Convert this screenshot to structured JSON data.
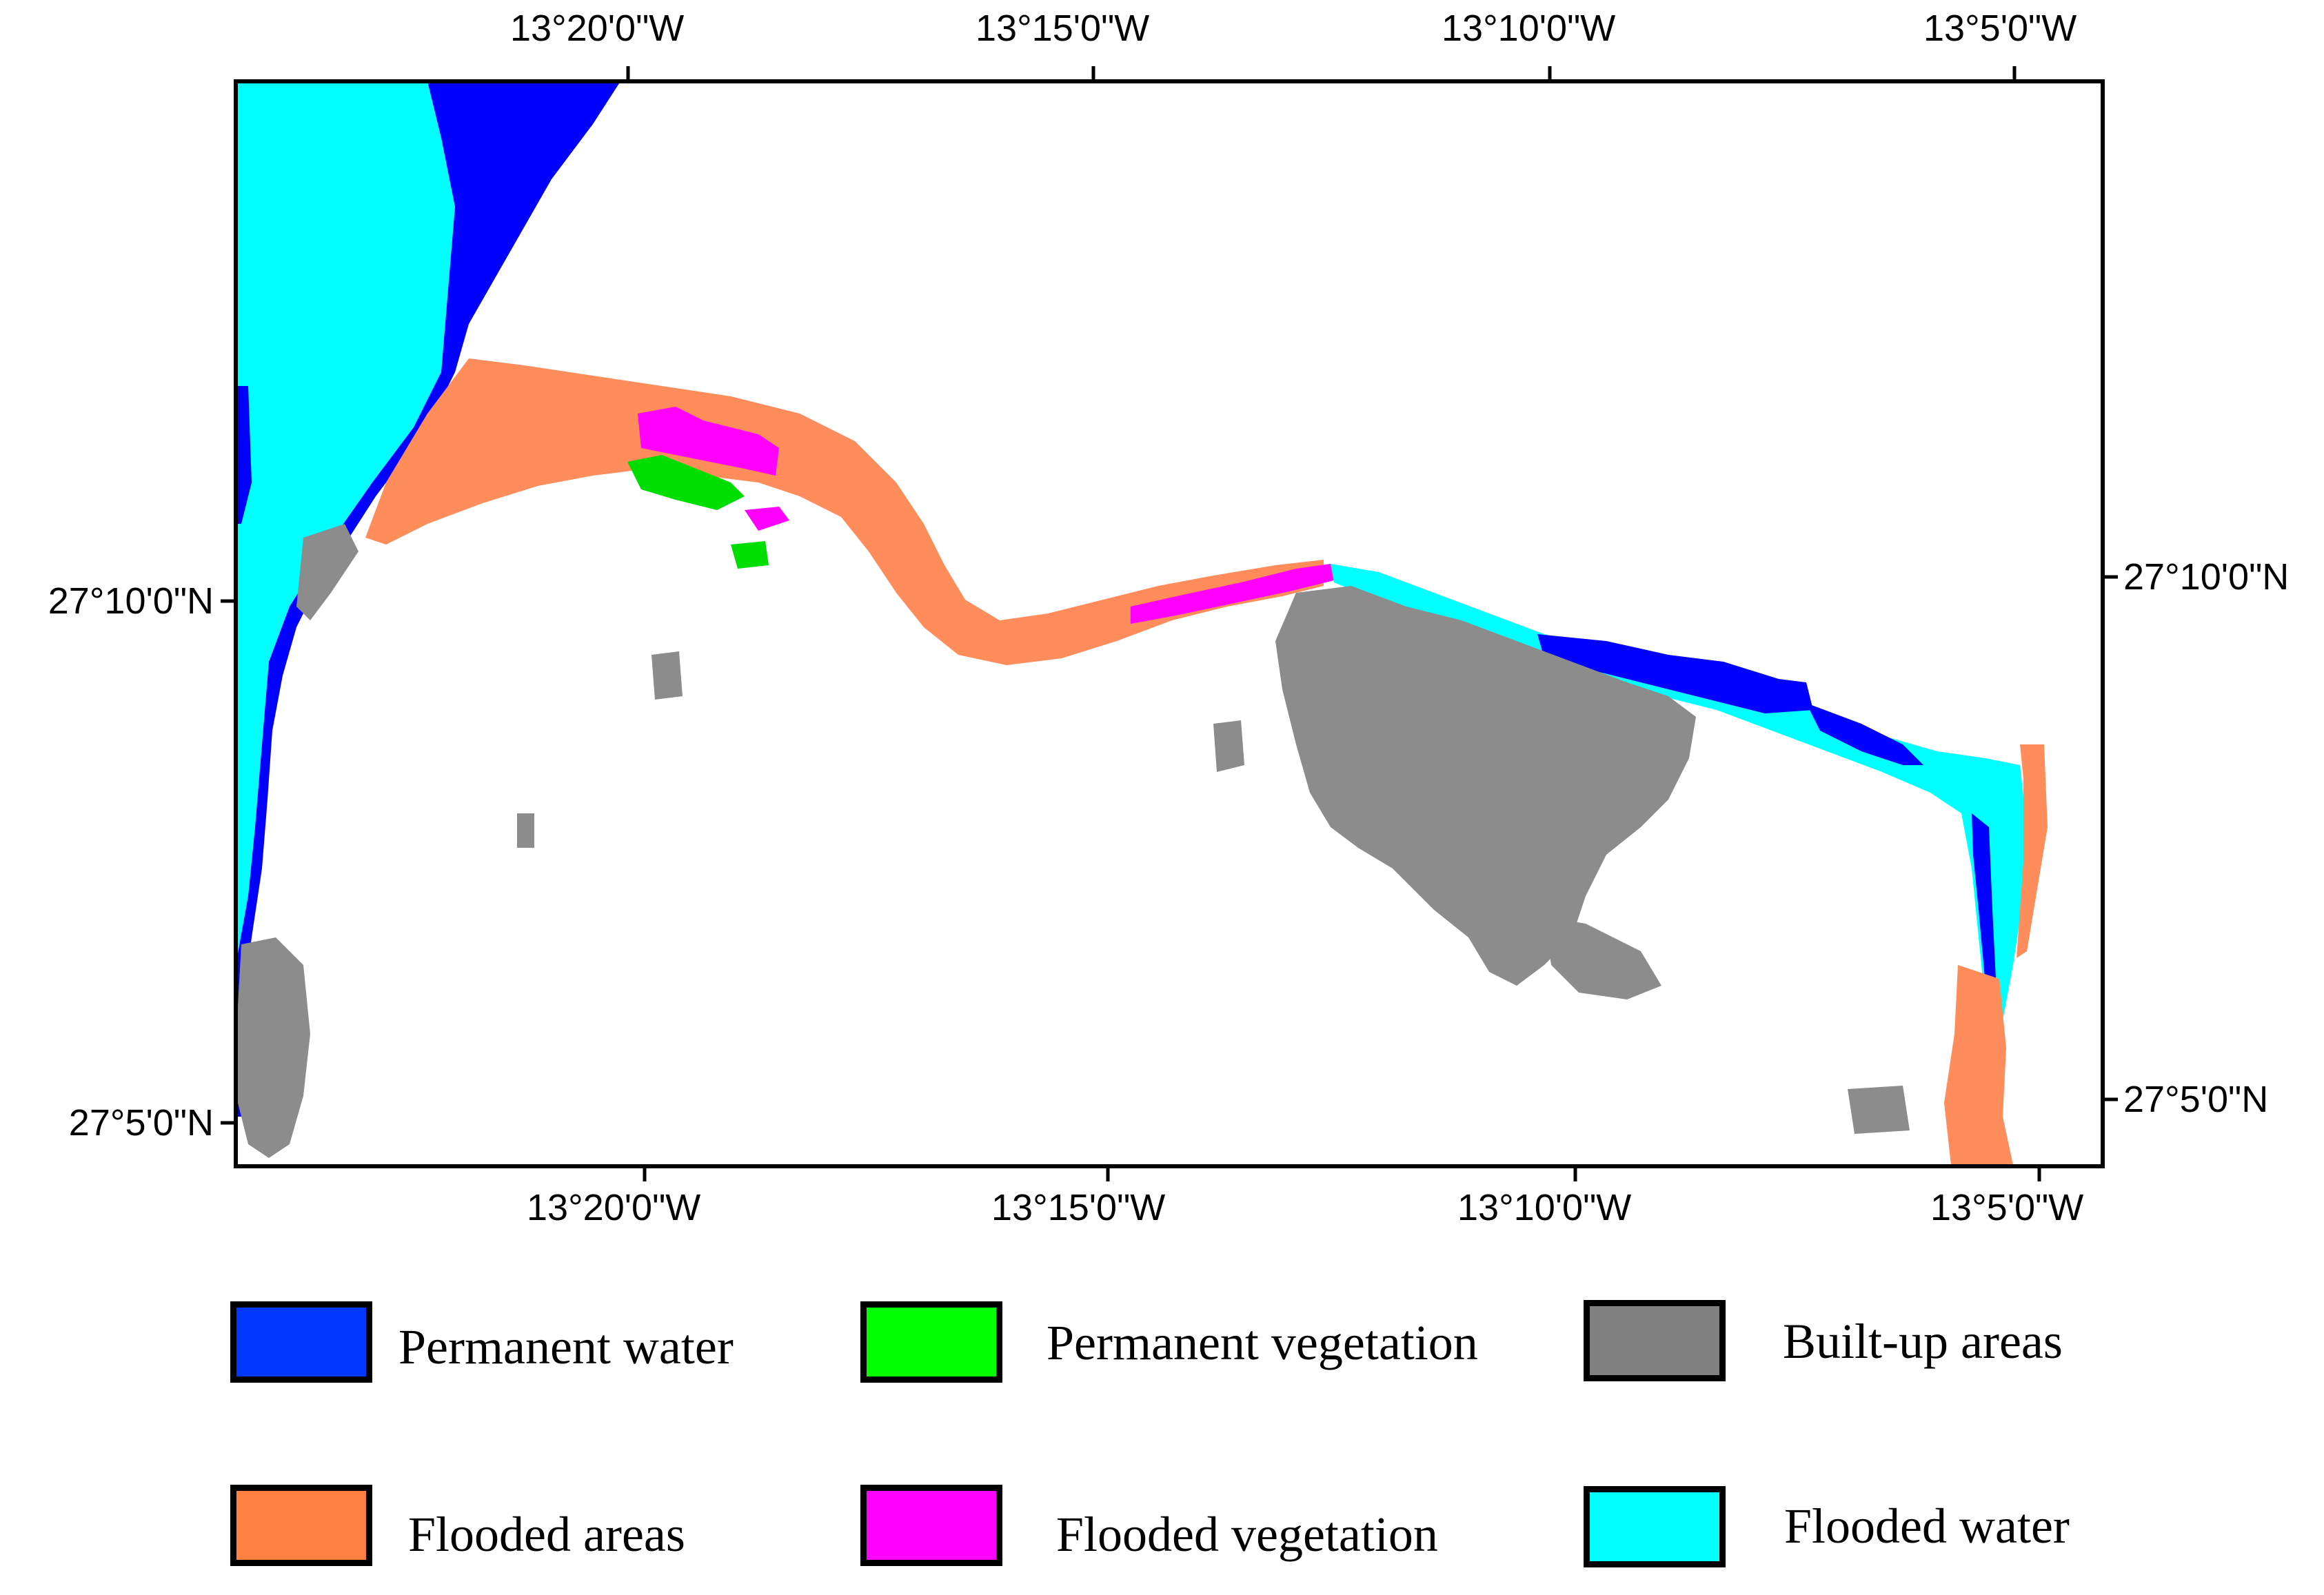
{
  "map": {
    "lon_ticks_top": [
      "13°20'0\"W",
      "13°15'0\"W",
      "13°10'0\"W",
      "13°5'0\"W"
    ],
    "lon_ticks_bottom": [
      "13°20'0\"W",
      "13°15'0\"W",
      "13°10'0\"W",
      "13°5'0\"W"
    ],
    "lat_ticks_left": [
      "27°10'0\"N",
      "27°5'0\"N"
    ],
    "lat_ticks_right": [
      "27°10'0\"N",
      "27°5'0\"N"
    ]
  },
  "legend": [
    {
      "label": "Permanent water",
      "color": "#0037ff"
    },
    {
      "label": "Permanent vegetation",
      "color": "#00ff00"
    },
    {
      "label": "Built-up areas",
      "color": "#808080"
    },
    {
      "label": "Flooded areas",
      "color": "#ff8040"
    },
    {
      "label": "Flooded vegetation",
      "color": "#ff00ff"
    },
    {
      "label": "Flooded water",
      "color": "#00ffff"
    }
  ],
  "colors": {
    "permanent_water": "#0000ff",
    "flooded_water": "#00ffff",
    "flooded_areas": "#ff8c5a",
    "flooded_vegetation": "#ff00ff",
    "permanent_vegetation": "#00dd00",
    "built_up": "#8c8c8c",
    "frame": "#000000"
  }
}
